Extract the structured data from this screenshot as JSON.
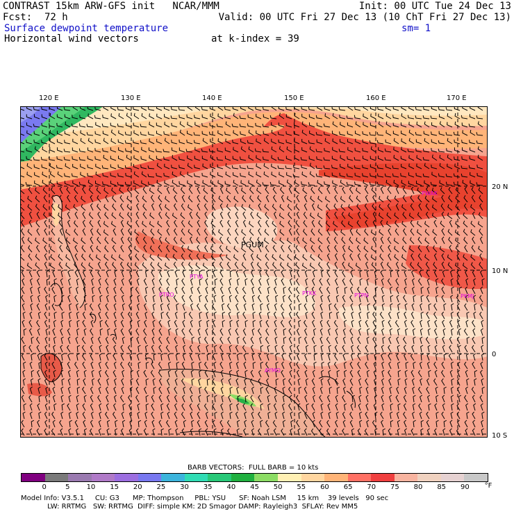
{
  "header": {
    "line1_left": "CONTRAST 15km ARW-GFS init   NCAR/MMM",
    "line1_right": "Init: 00 UTC Tue 24 Dec 13",
    "fcst_label": "Fcst:",
    "fcst_value": "72 h",
    "valid": "Valid: 00 UTC Fri 27 Dec 13 (10 ChT Fri 27 Dec 13)",
    "field": "Surface dewpoint temperature",
    "smooth": "sm= 1",
    "vectors": "Horizontal wind vectors",
    "kindex_label": "at k-index =",
    "kindex_value": "39"
  },
  "axes": {
    "lon_labels": [
      "120 E",
      "130 E",
      "140 E",
      "150 E",
      "160 E",
      "170 E"
    ],
    "lat_labels": [
      "20 N",
      "10 N",
      "0",
      "10 S"
    ]
  },
  "stations": [
    {
      "id": "PWAK"
    },
    {
      "id": "PGUM"
    },
    {
      "id": "PTYA"
    },
    {
      "id": "PTRO"
    },
    {
      "id": "PTKK"
    },
    {
      "id": "PTPN"
    },
    {
      "id": "PKMJ"
    },
    {
      "id": "AYMO"
    }
  ],
  "legend": {
    "barb_note": "BARB VECTORS:  FULL BARB = 10 kts",
    "ticks": [
      "0",
      "5",
      "10",
      "15",
      "20",
      "25",
      "30",
      "35",
      "40",
      "45",
      "50",
      "55",
      "60",
      "65",
      "70",
      "75",
      "80",
      "85",
      "90"
    ],
    "unit": "°F",
    "colors": [
      "#800080",
      "#7a7a7a",
      "#9a7ab0",
      "#b07ac8",
      "#9c6ee0",
      "#7878f0",
      "#3cb4dc",
      "#30dcb4",
      "#28c878",
      "#20b040",
      "#8cdc64",
      "#fff0b4",
      "#ffd6a0",
      "#ffb478",
      "#ff7064",
      "#f04040",
      "#f8b4a0",
      "#f0d2c0",
      "#e6d2d2",
      "#c8c8c8"
    ]
  },
  "footer": {
    "line1": "Model Info: V3.5.1     CU: G3      MP: Thompson     PBL: YSU      SF: Noah LSM     15 km    39 levels   90 sec",
    "line2": "            LW: RRTMG   SW: RRTMG  DIFF: simple KM: 2D Smagor DAMP: Rayleigh3  SFLAY: Rev MM5"
  }
}
